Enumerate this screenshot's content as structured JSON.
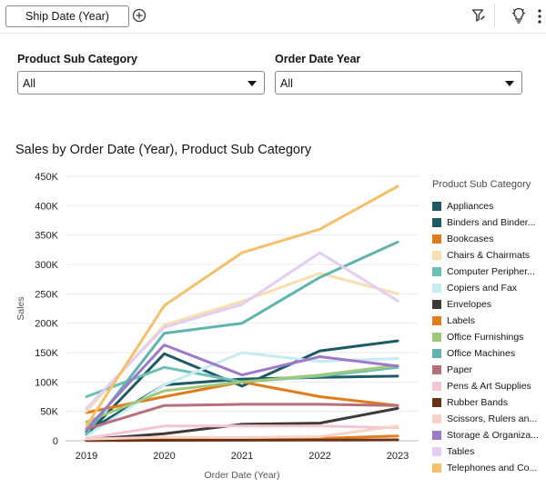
{
  "toolbar": {
    "chip_label": "Ship Date (Year)",
    "add_icon": "plus-circle-icon",
    "filter_icon": "filter-edit-icon",
    "insight_icon": "bulb-icon",
    "more_icon": "more-vertical-icon"
  },
  "filters": [
    {
      "label": "Product Sub Category",
      "value": "All"
    },
    {
      "label": "Order Date Year",
      "value": "All"
    }
  ],
  "chart_title": "Sales by Order Date (Year), Product Sub Category",
  "legend_title": "Product Sub Category",
  "chart_data": {
    "type": "line",
    "title": "Sales by Order Date (Year), Product Sub Category",
    "xlabel": "Order Date (Year)",
    "ylabel": "Sales",
    "x": [
      "2019",
      "2020",
      "2021",
      "2022",
      "2023"
    ],
    "ylim": [
      0,
      450000
    ],
    "yticks": [
      0,
      50000,
      100000,
      150000,
      200000,
      250000,
      300000,
      350000,
      400000,
      450000
    ],
    "ytick_labels": [
      "0",
      "50K",
      "100K",
      "150K",
      "200K",
      "250K",
      "300K",
      "350K",
      "400K",
      "450K"
    ],
    "legend_position": "right",
    "series": [
      {
        "name": "Appliances",
        "display": "Appliances",
        "color": "#1d5a63",
        "values": [
          10000,
          148000,
          93000,
          153000,
          170000
        ]
      },
      {
        "name": "Binders and Binder Accessories",
        "display": "Binders and Binder...",
        "color": "#1e5b66",
        "values": [
          15000,
          95000,
          105000,
          108000,
          110000
        ]
      },
      {
        "name": "Bookcases",
        "display": "Bookcases",
        "color": "#e07b1a",
        "values": [
          48000,
          75000,
          100000,
          75000,
          60000
        ]
      },
      {
        "name": "Chairs & Chairmats",
        "display": "Chairs & Chairmats",
        "color": "#f7dfb0",
        "values": [
          50000,
          197000,
          237000,
          285000,
          250000
        ]
      },
      {
        "name": "Computer Peripherals",
        "display": "Computer Peripher...",
        "color": "#6dbfb6",
        "values": [
          75000,
          125000,
          100000,
          110000,
          125000
        ]
      },
      {
        "name": "Copiers and Fax",
        "display": "Copiers and Fax",
        "color": "#c6ebf1",
        "values": [
          8000,
          95000,
          150000,
          135000,
          140000
        ]
      },
      {
        "name": "Envelopes",
        "display": "Envelopes",
        "color": "#3f3a35",
        "values": [
          2000,
          12000,
          28000,
          30000,
          55000
        ]
      },
      {
        "name": "Labels",
        "display": "Labels",
        "color": "#e27d1e",
        "values": [
          800,
          3000,
          3500,
          4000,
          8000
        ]
      },
      {
        "name": "Office Furnishings",
        "display": "Office Furnishings",
        "color": "#9fc87b",
        "values": [
          32000,
          85000,
          100000,
          112000,
          128000
        ]
      },
      {
        "name": "Office Machines",
        "display": "Office Machines",
        "color": "#5fb5ad",
        "values": [
          12000,
          183000,
          200000,
          278000,
          338000
        ]
      },
      {
        "name": "Paper",
        "display": "Paper",
        "color": "#b66f7c",
        "values": [
          20000,
          60000,
          62000,
          62000,
          60000
        ]
      },
      {
        "name": "Pens & Art Supplies",
        "display": "Pens & Art Supplies",
        "color": "#f2c6d2",
        "values": [
          4000,
          25000,
          25000,
          25000,
          22000
        ]
      },
      {
        "name": "Rubber Bands",
        "display": "Rubber Bands",
        "color": "#6b3216",
        "values": [
          300,
          700,
          900,
          1100,
          1500
        ]
      },
      {
        "name": "Scissors, Rulers and Trimmers",
        "display": "Scissors, Rulers an...",
        "color": "#f7d2c6",
        "values": [
          3000,
          6000,
          5500,
          7000,
          25000
        ]
      },
      {
        "name": "Storage & Organization",
        "display": "Storage & Organiza...",
        "color": "#9c79c9",
        "values": [
          20000,
          163000,
          112000,
          143000,
          127000
        ]
      },
      {
        "name": "Tables",
        "display": "Tables",
        "color": "#e4cdf2",
        "values": [
          55000,
          193000,
          232000,
          320000,
          238000
        ]
      },
      {
        "name": "Telephones and Communication",
        "display": "Telephones and Co...",
        "color": "#f5c06b",
        "values": [
          25000,
          230000,
          320000,
          360000,
          433000
        ]
      }
    ]
  }
}
